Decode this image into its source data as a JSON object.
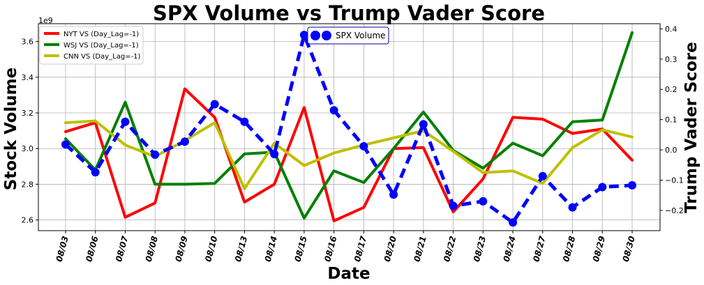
{
  "chart_data": {
    "type": "line",
    "title": "SPX Volume vs Trump Vader Score",
    "xlabel": "Date",
    "ylabel": "Stock Volume",
    "y2label": "Trump Vader Score",
    "y_offset_label": "1e9",
    "categories": [
      "08/03",
      "08/06",
      "08/07",
      "08/08",
      "08/09",
      "08/10",
      "08/13",
      "08/14",
      "08/15",
      "08/16",
      "08/17",
      "08/20",
      "08/21",
      "08/22",
      "08/23",
      "08/24",
      "08/27",
      "08/28",
      "08/29",
      "08/30"
    ],
    "ylim": [
      2.54,
      3.7
    ],
    "y2lim": [
      -0.267,
      0.417
    ],
    "yticks": [
      2.6,
      2.8,
      3.0,
      3.2,
      3.4,
      3.6
    ],
    "yticklabels": [
      "2.6",
      "2.8",
      "3.0",
      "3.2",
      "3.4",
      "3.6"
    ],
    "y2ticks": [
      -0.2,
      -0.1,
      0.0,
      0.1,
      0.2,
      0.3,
      0.4
    ],
    "y2ticklabels": [
      "−0.2",
      "−0.1",
      "0.0",
      "0.1",
      "0.2",
      "0.3",
      "0.4"
    ],
    "grid": true,
    "legend_left": "upper-left",
    "legend_right": "upper-center",
    "series_left": [
      {
        "name": "NYT VS (Day_Lag=-1)",
        "color": "#ff0000",
        "values": [
          3.095,
          3.145,
          2.615,
          2.695,
          3.335,
          3.175,
          2.7,
          2.8,
          3.23,
          2.595,
          2.67,
          3.0,
          3.005,
          2.645,
          2.83,
          3.175,
          3.165,
          3.085,
          3.11,
          2.935
        ]
      },
      {
        "name": "WSJ VS (Day_Lag=-1)",
        "color": "#008000",
        "values": [
          3.055,
          2.88,
          3.26,
          2.8,
          2.8,
          2.805,
          2.97,
          2.98,
          2.61,
          2.875,
          2.81,
          3.0,
          3.205,
          2.99,
          2.89,
          3.03,
          2.96,
          3.15,
          3.16,
          3.65
        ]
      },
      {
        "name": "CNN VS (Day_Lag=-1)",
        "color": "#bfbf00",
        "values": [
          3.145,
          3.155,
          3.02,
          2.955,
          3.045,
          3.145,
          2.775,
          3.03,
          2.905,
          2.975,
          3.02,
          3.06,
          3.1,
          2.985,
          2.865,
          2.875,
          2.805,
          3.005,
          3.105,
          3.065
        ]
      }
    ],
    "series_right": [
      {
        "name": "SPX Volume",
        "color": "#0000ff",
        "values": [
          0.018,
          -0.074,
          0.093,
          -0.016,
          0.027,
          0.151,
          0.093,
          -0.014,
          0.38,
          0.131,
          0.012,
          -0.148,
          0.085,
          -0.185,
          -0.17,
          -0.24,
          -0.087,
          -0.19,
          -0.123,
          -0.117
        ]
      }
    ]
  }
}
